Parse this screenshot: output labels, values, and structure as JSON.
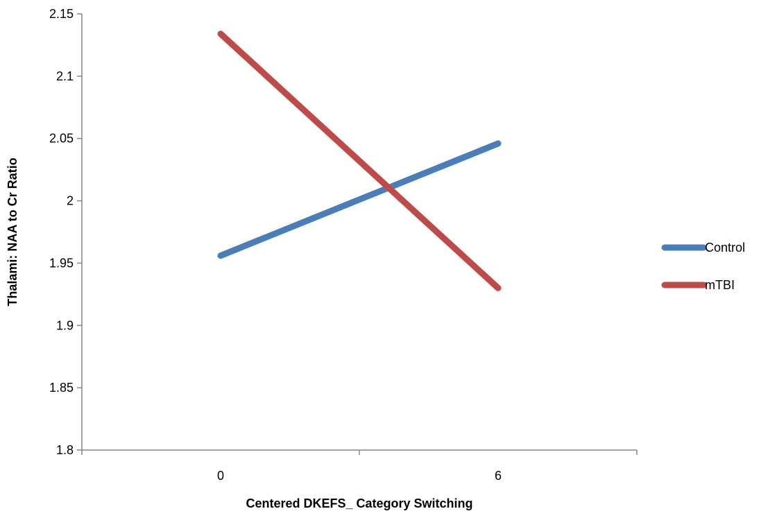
{
  "chart_data": {
    "type": "line",
    "title": "",
    "xlabel": "Centered DKEFS_ Category Switching",
    "ylabel": "Thalami: NAA to Cr Ratio",
    "x": [
      0,
      6
    ],
    "x_tick_labels": [
      "0",
      "6"
    ],
    "ylim": [
      1.8,
      2.15
    ],
    "y_ticks": [
      1.8,
      1.85,
      1.9,
      1.95,
      2,
      2.05,
      2.1,
      2.15
    ],
    "y_tick_labels": [
      "1.8",
      "1.85",
      "1.9",
      "1.95",
      "2",
      "2.05",
      "2.1",
      "2.15"
    ],
    "grid": false,
    "legend_position": "right",
    "series": [
      {
        "name": "Control",
        "color": "#4a7ebb",
        "values": [
          1.956,
          2.046
        ]
      },
      {
        "name": "mTBI",
        "color": "#be4b48",
        "values": [
          2.134,
          1.93
        ]
      }
    ]
  }
}
